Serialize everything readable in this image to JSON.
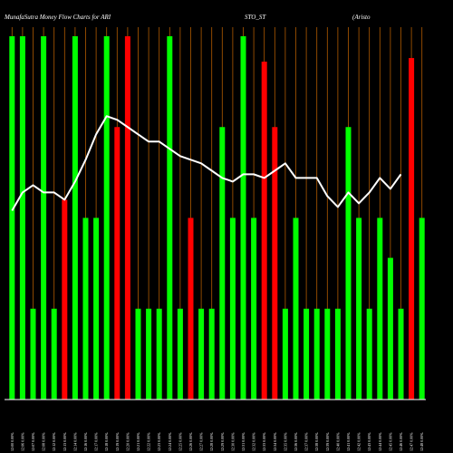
{
  "title": {
    "left": "MunafaSutra  Money Flow  Charts for ARI",
    "middle": "STO_ST",
    "right": "(Aristo"
  },
  "colors": {
    "background": "#000000",
    "up": "#00ff00",
    "down": "#ff0000",
    "line": "#ffffff",
    "grid": "#b05a00",
    "axis": "#ffffff"
  },
  "chart_data": {
    "type": "bar",
    "title": "MunafaSutra  Money Flow  Charts for ARISTO_ST (Aristo",
    "ylim": [
      0,
      100
    ],
    "grid": "vertical",
    "categories": [
      "12:00 0.00%",
      "12:06 0.00%",
      "12:07 0.00%",
      "12:08 0.00%",
      "12:12 0.00%",
      "12:13 0.00%",
      "12:14 0.00%",
      "12:16 0.00%",
      "12:17 0.00%",
      "12:18 0.00%",
      "12:19 0.00%",
      "12:20 0.00%",
      "12:21 0.00%",
      "12:22 0.00%",
      "12:23 0.00%",
      "12:24 0.00%",
      "12:25 0.00%",
      "12:26 0.00%",
      "12:27 0.00%",
      "12:28 0.00%",
      "12:29 0.00%",
      "12:30 0.00%",
      "12:31 0.00%",
      "12:32 0.00%",
      "12:33 0.00%",
      "12:34 0.00%",
      "12:35 0.00%",
      "12:36 0.00%",
      "12:37 0.00%",
      "12:38 0.00%",
      "12:39 0.00%",
      "12:40 0.00%",
      "12:41 0.00%",
      "12:42 0.00%",
      "12:43 0.00%",
      "12:44 0.00%",
      "12:45 0.00%",
      "12:46 0.00%",
      "12:47 0.00%",
      "12:48 0.00%"
    ],
    "values": [
      100,
      100,
      25,
      100,
      25,
      55,
      100,
      50,
      50,
      100,
      75,
      100,
      25,
      25,
      25,
      100,
      25,
      50,
      25,
      25,
      75,
      50,
      100,
      50,
      93,
      75,
      25,
      50,
      25,
      25,
      25,
      25,
      75,
      50,
      25,
      50,
      39,
      25,
      94,
      50
    ],
    "directions": [
      "up",
      "up",
      "up",
      "up",
      "up",
      "down",
      "up",
      "up",
      "up",
      "up",
      "down",
      "down",
      "up",
      "up",
      "up",
      "up",
      "up",
      "down",
      "up",
      "up",
      "up",
      "up",
      "up",
      "up",
      "down",
      "down",
      "up",
      "up",
      "up",
      "up",
      "up",
      "up",
      "up",
      "up",
      "up",
      "up",
      "up",
      "up",
      "down",
      "up"
    ],
    "line": [
      52,
      57,
      59,
      57,
      57,
      55,
      60,
      66,
      73,
      78,
      77,
      75,
      73,
      71,
      71,
      69,
      67,
      66,
      65,
      63,
      61,
      60,
      62,
      62,
      61,
      63,
      65,
      61,
      61,
      61,
      56,
      53,
      57,
      54,
      57,
      61,
      58,
      62
    ]
  }
}
